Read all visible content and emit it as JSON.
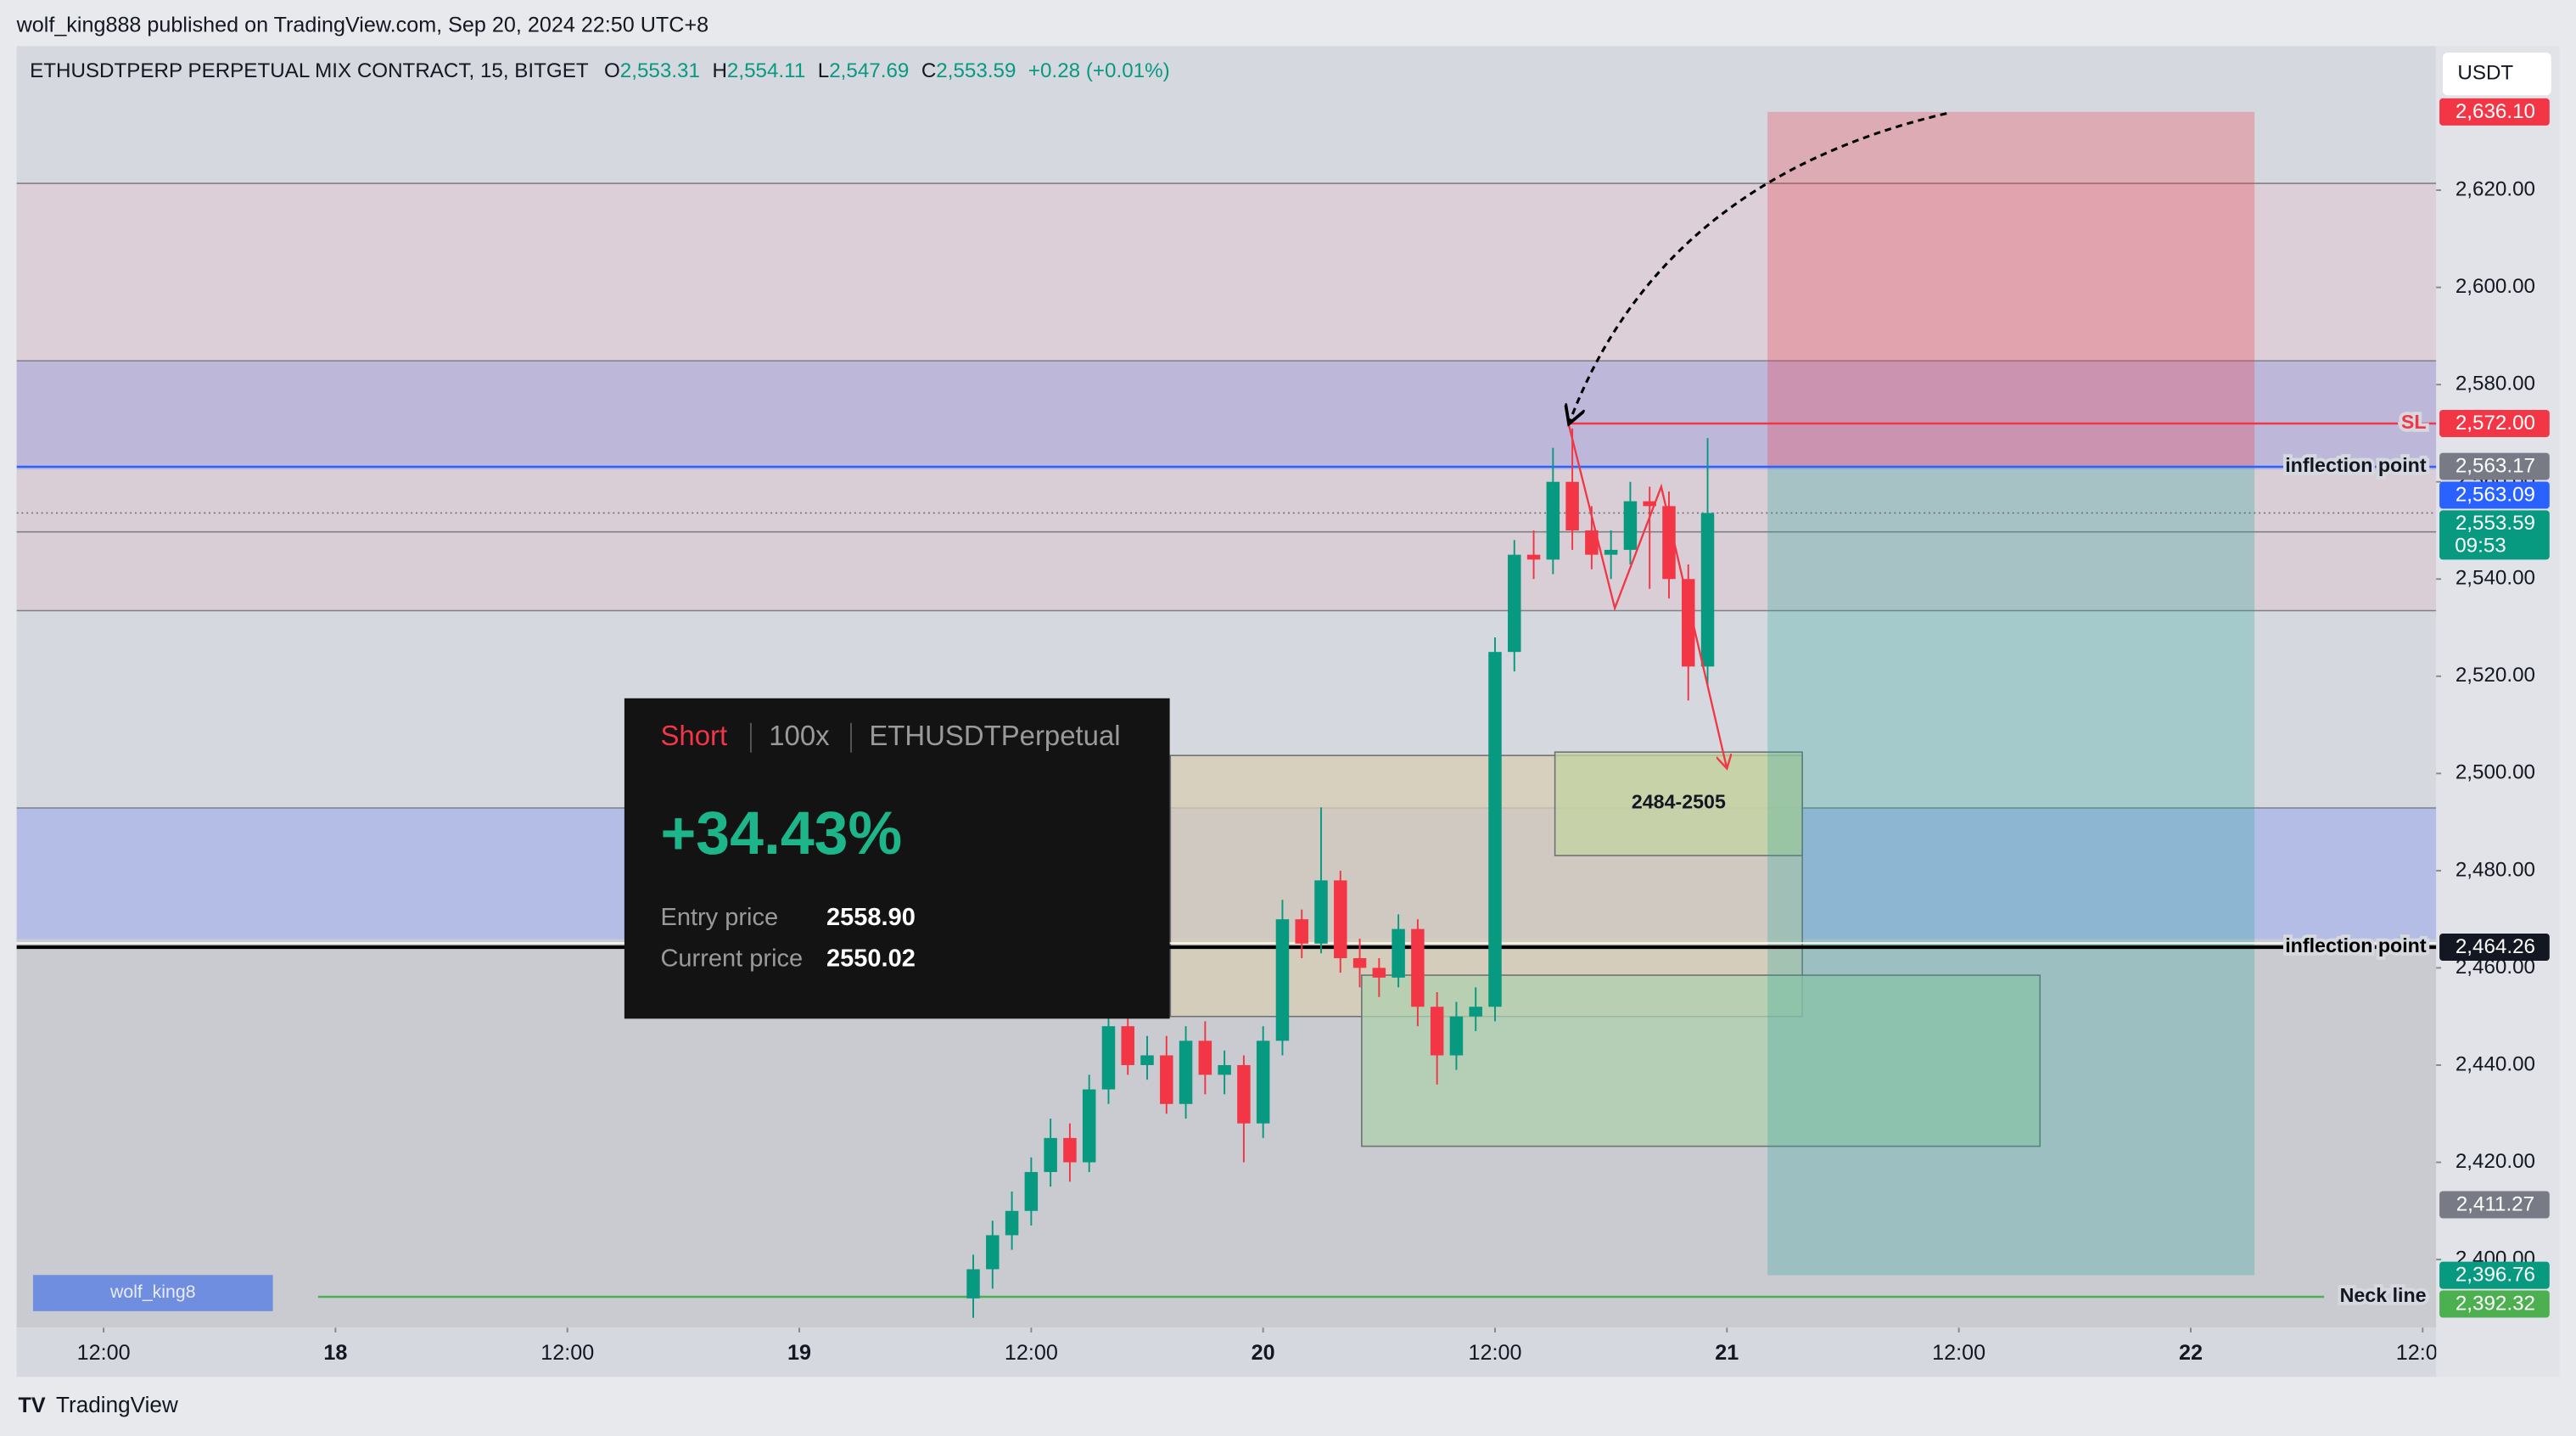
{
  "header": {
    "publisher": "wolf_king888 published on TradingView.com, Sep 20, 2024 22:50 UTC+8"
  },
  "chart_data": {
    "type": "candlestick",
    "title": "ETHUSDTPERP PERPETUAL MIX CONTRACT, 15, BITGET",
    "ohlc_text": [
      "O",
      "2,553.31",
      "H",
      "2,554.11",
      "L",
      "2,547.69",
      "C",
      "2,553.59",
      "+0.28 (+0.01%)"
    ],
    "currency": "USDT",
    "up_color": "#089981",
    "down_color": "#f23645",
    "x": [
      33,
      34,
      35,
      36,
      37,
      38,
      39,
      40,
      41,
      42,
      43,
      44,
      45,
      46,
      47,
      48,
      49,
      50,
      51,
      52,
      53,
      54,
      55,
      56,
      57,
      58,
      59,
      60,
      61,
      62,
      63,
      64,
      65,
      66,
      67,
      68,
      69,
      70,
      71
    ],
    "open": [
      2392,
      2398,
      2405,
      2410,
      2418,
      2425,
      2420,
      2435,
      2448,
      2440,
      2442,
      2432,
      2445,
      2438,
      2440,
      2428,
      2445,
      2470,
      2465,
      2478,
      2462,
      2460,
      2458,
      2468,
      2452,
      2442,
      2450,
      2452,
      2525,
      2545,
      2544,
      2560,
      2550,
      2545,
      2546,
      2556,
      2555,
      2540,
      2522
    ],
    "high": [
      2401,
      2408,
      2414,
      2421,
      2429,
      2428,
      2438,
      2451,
      2450,
      2446,
      2446,
      2448,
      2449,
      2443,
      2442,
      2448,
      2474,
      2472,
      2493,
      2480,
      2466,
      2462,
      2471,
      2470,
      2455,
      2453,
      2456,
      2528,
      2548,
      2550,
      2567,
      2571,
      2555,
      2550,
      2560,
      2559,
      2558,
      2543,
      2569
    ],
    "low": [
      2388,
      2394,
      2402,
      2407,
      2415,
      2416,
      2418,
      2432,
      2438,
      2437,
      2430,
      2429,
      2434,
      2434,
      2420,
      2425,
      2442,
      2462,
      2463,
      2459,
      2456,
      2454,
      2456,
      2448,
      2436,
      2439,
      2447,
      2449,
      2521,
      2540,
      2541,
      2546,
      2542,
      2540,
      2543,
      2538,
      2536,
      2515,
      2518
    ],
    "close": [
      2398,
      2405,
      2410,
      2418,
      2425,
      2420,
      2435,
      2448,
      2440,
      2442,
      2432,
      2445,
      2438,
      2440,
      2428,
      2445,
      2470,
      2465,
      2478,
      2462,
      2460,
      2458,
      2468,
      2452,
      2442,
      2450,
      2452,
      2525,
      2545,
      2544,
      2560,
      2550,
      2545,
      2546,
      2556,
      2555,
      2540,
      2522,
      2553.59
    ],
    "xlim": [
      -16.5,
      108.7
    ],
    "xticks": [
      {
        "value": -12,
        "label": "12:00"
      },
      {
        "value": 0,
        "label": "18"
      },
      {
        "value": 12,
        "label": "12:00"
      },
      {
        "value": 24,
        "label": "19"
      },
      {
        "value": 36,
        "label": "12:00"
      },
      {
        "value": 48,
        "label": "20"
      },
      {
        "value": 60,
        "label": "12:00"
      },
      {
        "value": 72,
        "label": "21"
      },
      {
        "value": 84,
        "label": "12:00"
      },
      {
        "value": 96,
        "label": "22"
      },
      {
        "value": 108,
        "label": "12:00"
      }
    ],
    "ylim": [
      2386,
      2650
    ],
    "yticks": [
      {
        "value": 2400,
        "label": "2,400.00"
      },
      {
        "value": 2420,
        "label": "2,420.00"
      },
      {
        "value": 2440,
        "label": "2,440.00"
      },
      {
        "value": 2460,
        "label": "2,460.00"
      },
      {
        "value": 2480,
        "label": "2,480.00"
      },
      {
        "value": 2500,
        "label": "2,500.00"
      },
      {
        "value": 2520,
        "label": "2,520.00"
      },
      {
        "value": 2540,
        "label": "2,540.00"
      },
      {
        "value": 2560,
        "label": "2,560.00"
      },
      {
        "value": 2580,
        "label": "2,580.00"
      },
      {
        "value": 2600,
        "label": "2,600.00"
      },
      {
        "value": 2620,
        "label": "2,620.00"
      }
    ],
    "zones": [
      {
        "from": 2621.4,
        "to": 2584.9,
        "color": "#dccfd7"
      },
      {
        "from": 2584.9,
        "to": 2562.5,
        "color": "#bdb8da"
      },
      {
        "from": 2562.5,
        "to": 2533.5,
        "color": "#d9ced6"
      },
      {
        "from": 2492.9,
        "to": 2465.9,
        "color": "#b3bde6"
      },
      {
        "from": 2465.9,
        "to": 2386,
        "color": "#c9cbd0"
      }
    ],
    "guide_lines": [
      2621.4,
      2584.9,
      2549.7,
      2533.5,
      2492.9
    ],
    "boxes": [
      {
        "x0": 43.2,
        "x1": 75.9,
        "top": 2503.7,
        "bottom": 2450,
        "color": "#d8cdb4"
      },
      {
        "x0": 63.1,
        "x1": 75.9,
        "top": 2504.4,
        "bottom": 2483.1,
        "color": "#c3d3a0",
        "label": "2484-2505"
      },
      {
        "x0": 53.1,
        "x1": 88.2,
        "top": 2458.5,
        "bottom": 2423.3,
        "color": "#aecfae"
      }
    ],
    "position": {
      "x0": 74.1,
      "x1": 99.3,
      "entry": 2563.09,
      "stop": 2636.1,
      "target": 2396.76,
      "stop_color": "#f23645",
      "target_color": "#26a69a"
    },
    "zigzag": {
      "x": [
        63.8,
        66.2,
        68.6,
        72.0
      ],
      "y": [
        2572,
        2534,
        2559,
        2501
      ],
      "color": "#f23645"
    },
    "levels": [
      {
        "value": 2572,
        "label": "SL",
        "color": "#f23645",
        "from_x": 63.8
      },
      {
        "value": 2563.09,
        "label": "inflection point",
        "color": "#2962ff"
      },
      {
        "value": 2464.26,
        "label": "inflection point",
        "color": "#000000"
      },
      {
        "value": 2392.32,
        "label": "Neck line",
        "color": "#4caf50",
        "from_x": -0.9,
        "to_x": 102.9
      }
    ],
    "last_price": 2553.59,
    "price_labels": [
      {
        "value": 2636.1,
        "label": "2,636.10",
        "color": "#f23645"
      },
      {
        "value": 2572.0,
        "label": "2,572.00",
        "color": "#f23645"
      },
      {
        "value": 2563.17,
        "label": "2,563.17",
        "color": "#787b86"
      },
      {
        "value": 2563.09,
        "label": "2,563.09",
        "color": "#2962ff"
      },
      {
        "value": 2553.59,
        "label": "2,553.59",
        "color": "#089981",
        "countdown": "09:53"
      },
      {
        "value": 2464.26,
        "label": "2,464.26",
        "color": "#131722"
      },
      {
        "value": 2411.27,
        "label": "2,411.27",
        "color": "#787b86"
      },
      {
        "value": 2396.76,
        "label": "2,396.76",
        "color": "#089981"
      },
      {
        "value": 2392.32,
        "label": "2,392.32",
        "color": "#4caf50"
      }
    ]
  },
  "card": {
    "side": "Short",
    "leverage": "100x",
    "symbol": "ETHUSDTPerpetual",
    "pnl": "+34.43%",
    "entry_label": "Entry price",
    "entry_value": "2558.90",
    "current_label": "Current price",
    "current_value": "2550.02"
  },
  "watermark": "wolf_king8",
  "footer": "TradingView"
}
